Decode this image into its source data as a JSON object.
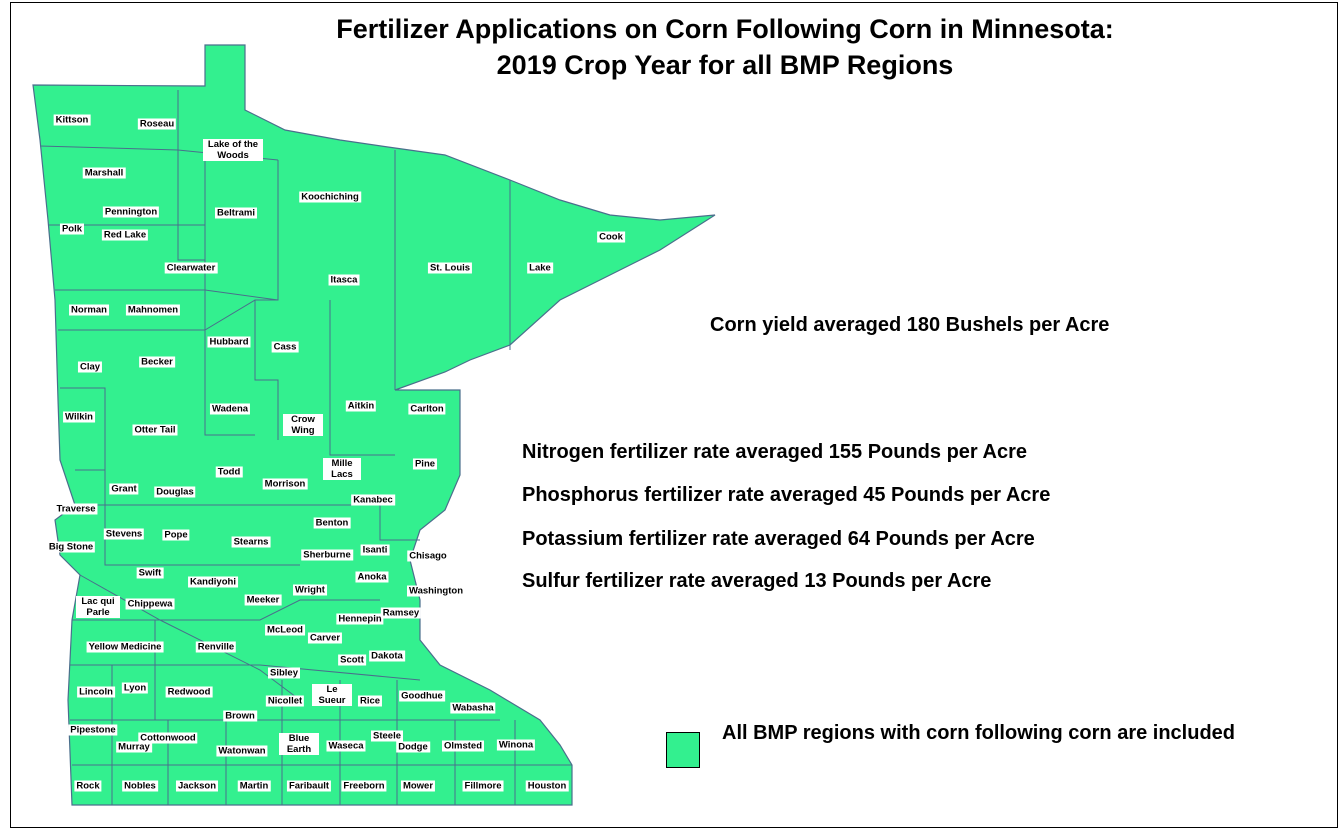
{
  "title": [
    "Fertilizer Applications on Corn Following Corn in Minnesota:",
    "2019 Crop Year for all BMP Regions"
  ],
  "map": {
    "fill": "#33f08f",
    "counties": [
      "Kittson",
      "Roseau",
      "Lake of the Woods",
      "Marshall",
      "Koochiching",
      "Pennington",
      "Beltrami",
      "Polk",
      "Red Lake",
      "Cook",
      "Clearwater",
      "Itasca",
      "St. Louis",
      "Lake",
      "Norman",
      "Mahnomen",
      "Hubbard",
      "Cass",
      "Clay",
      "Becker",
      "Wilkin",
      "Otter Tail",
      "Wadena",
      "Crow Wing",
      "Aitkin",
      "Carlton",
      "Todd",
      "Mille Lacs",
      "Pine",
      "Grant",
      "Douglas",
      "Morrison",
      "Kanabec",
      "Traverse",
      "Benton",
      "Stevens",
      "Pope",
      "Stearns",
      "Big Stone",
      "Sherburne",
      "Isanti",
      "Chisago",
      "Swift",
      "Kandiyohi",
      "Anoka",
      "Wright",
      "Washington",
      "Meeker",
      "Lac qui Parle",
      "Chippewa",
      "Hennepin",
      "Ramsey",
      "McLeod",
      "Carver",
      "Yellow Medicine",
      "Renville",
      "Dakota",
      "Scott",
      "Sibley",
      "Lincoln",
      "Lyon",
      "Redwood",
      "Le Sueur",
      "Nicollet",
      "Rice",
      "Goodhue",
      "Wabasha",
      "Brown",
      "Pipestone",
      "Cottonwood",
      "Murray",
      "Watonwan",
      "Blue Earth",
      "Waseca",
      "Steele",
      "Dodge",
      "Olmsted",
      "Winona",
      "Rock",
      "Nobles",
      "Jackson",
      "Martin",
      "Faribault",
      "Freeborn",
      "Mower",
      "Fillmore",
      "Houston"
    ]
  },
  "stats": {
    "yield": "Corn yield averaged 180 Bushels per Acre",
    "rates": [
      "Nitrogen fertilizer rate averaged 155 Pounds per Acre",
      "Phosphorus fertilizer rate averaged 45 Pounds per Acre",
      "Potassium fertilizer rate averaged 64 Pounds per Acre",
      "Sulfur fertilizer rate averaged 13 Pounds  per Acre"
    ]
  },
  "legend": {
    "label": "All BMP regions with corn following corn are included"
  }
}
